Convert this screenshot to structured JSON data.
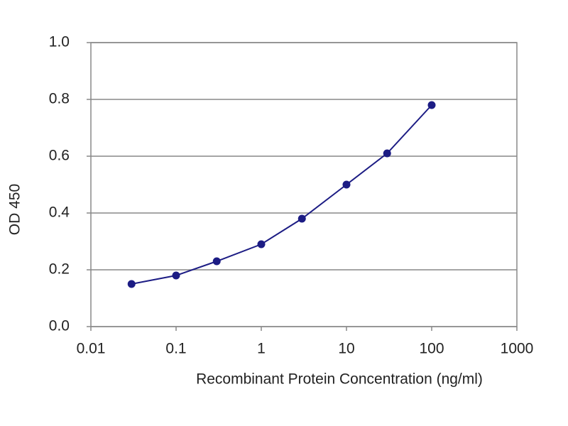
{
  "chart_data": {
    "type": "line",
    "xlabel": "Recombinant Protein Concentration (ng/ml)",
    "ylabel": "OD 450",
    "x": [
      0.03,
      0.1,
      0.3,
      1,
      3,
      10,
      30,
      100
    ],
    "values": [
      0.15,
      0.18,
      0.23,
      0.29,
      0.38,
      0.5,
      0.61,
      0.78
    ],
    "color": "#1c1c84",
    "xscale": "log",
    "xlim": [
      0.01,
      1000
    ],
    "xticks": [
      0.01,
      0.1,
      1,
      10,
      100,
      1000
    ],
    "ylim": [
      0,
      1
    ],
    "yticks": [
      {
        "value": 0,
        "label": "0.0"
      },
      0.2,
      0.4,
      0.6,
      0.8,
      {
        "value": 1,
        "label": "1.0"
      }
    ],
    "grid": true
  }
}
